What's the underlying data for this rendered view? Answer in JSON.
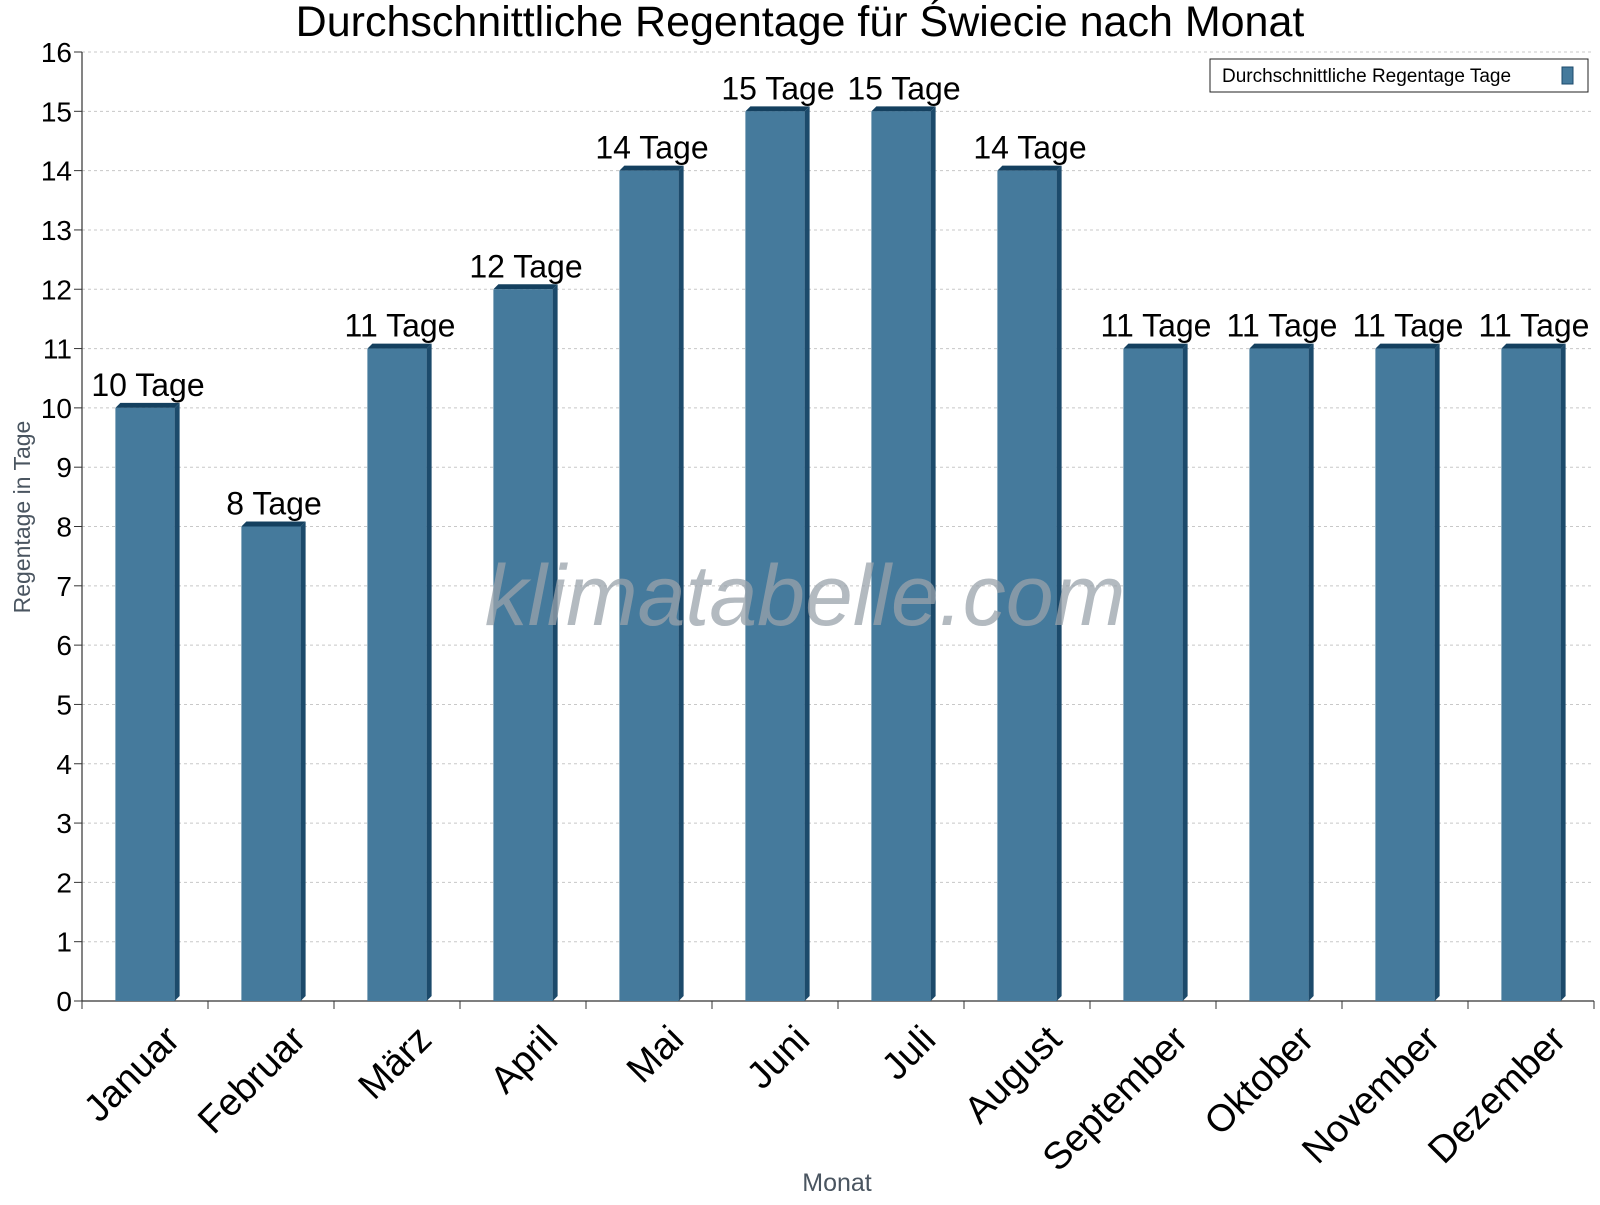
{
  "chart_data": {
    "type": "bar",
    "title": "Durchschnittliche Regentage für Świecie nach Monat",
    "xlabel": "Monat",
    "ylabel": "Regentage in Tage",
    "categories": [
      "Januar",
      "Februar",
      "März",
      "April",
      "Mai",
      "Juni",
      "Juli",
      "August",
      "September",
      "Oktober",
      "November",
      "Dezember"
    ],
    "series": [
      {
        "name": "Durchschnittliche Regentage Tage",
        "values": [
          10,
          8,
          11,
          12,
          14,
          15,
          15,
          14,
          11,
          11,
          11,
          11
        ],
        "data_labels": [
          "10 Tage",
          "8 Tage",
          "11 Tage",
          "12 Tage",
          "14 Tage",
          "15 Tage",
          "15 Tage",
          "14 Tage",
          "11 Tage",
          "11 Tage",
          "11 Tage",
          "11 Tage"
        ],
        "color": "#457a9c"
      }
    ],
    "ylim": [
      0,
      16
    ],
    "yticks": [
      0,
      1,
      2,
      3,
      4,
      5,
      6,
      7,
      8,
      9,
      10,
      11,
      12,
      13,
      14,
      15,
      16
    ],
    "grid": true,
    "legend_position": "top-right",
    "bar_side_color": "#1c4a6b",
    "bar_top_color": "#14405f"
  },
  "watermark": "klimatabelle.com"
}
